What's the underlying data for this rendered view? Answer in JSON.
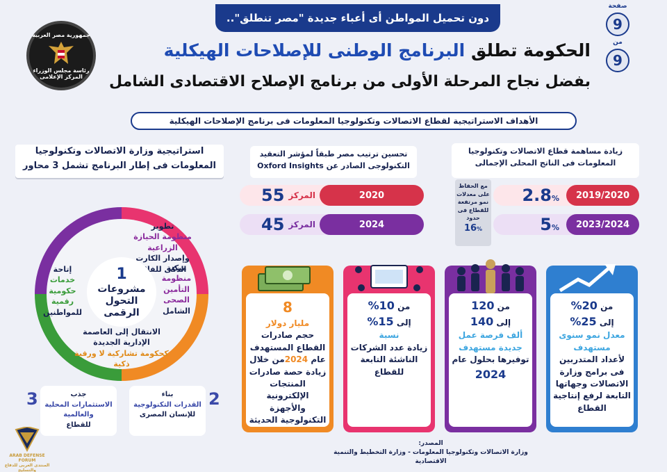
{
  "header": {
    "banner": "دون تحميل المواطن أى أعباء جديدة \"مصر تنطلق\"..",
    "title_pre": "الحكومة تطلق",
    "title_hl": "البرنامج الوطنى للإصلاحات الهيكلية",
    "subtitle": "بفضل نجاح المرحلة الأولى من برنامج الإصلاح الاقتصادى الشامل",
    "page_label": "صفحة",
    "page_num": "9",
    "of_label": "من",
    "of_num": "9"
  },
  "logo": {
    "line1": "جمهورية مصر العربية",
    "line2": "رئاسة مجلس الوزراء",
    "line3": "المركز الإعلامى"
  },
  "section_title": "الأهداف الاستراتيجية لقطاع الاتصالات وتكنولوجيا المعلومات فى برنامج الإصلاحات الهيكلية",
  "goal_gdp": {
    "title": "زيادة مساهمة قطاع الاتصالات وتكنولوجيا المعلومات فى الناتج المحلى الإجمالى",
    "rows": [
      {
        "year": "2019/2020",
        "value": "2.8",
        "unit": "%"
      },
      {
        "year": "2023/2024",
        "value": "5",
        "unit": "%"
      }
    ],
    "note": "مع الحفاظ على معدلات نمو مرتفعة للقطاع فى حدود",
    "note_value": "16",
    "note_unit": "%"
  },
  "goal_rank": {
    "title": "تحسين ترتيب مصر طبقاً لمؤشر التعقيد التكنولوجى الصادر عن",
    "source": "Oxford Insights",
    "rows": [
      {
        "year": "2020",
        "label": "المركز",
        "value": "55"
      },
      {
        "year": "2024",
        "label": "المركز",
        "value": "45"
      }
    ]
  },
  "cards": [
    {
      "l1": "من",
      "v1": "20",
      "l2": "إلى",
      "v2": "25",
      "unit": "%",
      "hl": "معدل نمو سنوى مستهدف",
      "text": "لأعداد المتدربين فى برامج وزارة الاتصالات وجهاتها التابعة لرفع إنتاجية القطاع"
    },
    {
      "l1": "من",
      "v1": "120",
      "l2": "إلى",
      "v2": "140",
      "hl": "ألف فرصة عمل جديدة مستهدف",
      "text": "توفيرها بحلول عام",
      "year": "2024"
    },
    {
      "l1": "من",
      "v1": "10",
      "l2": "إلى",
      "v2": "15",
      "unit": "%",
      "hl": "نسبة",
      "text": "زيادة عدد الشركات الناشئة التابعة للقطاع"
    },
    {
      "big": "8",
      "hl": "مليار دولار",
      "text": "حجم صادرات القطاع المستهدف عام",
      "year": "2024",
      "text2": "من خلال زيادة حصة صادرات المنتجات الإلكترونية والأجهزة التكنولوجية الحديثة"
    }
  ],
  "strategy": {
    "title": "استراتيجية وزارة الاتصالات وتكنولوجيا المعلومات فى إطار البرنامج تشمل 3 محاور",
    "center_num": "1",
    "center_text": "مشروعات التحول الرقمى",
    "seg_top": {
      "a": "تطوير",
      "b": "منظومة الحيازة الزراعية",
      "c": "وإصدار الكارت الذكى للفلاح"
    },
    "seg_right": {
      "a": "ميكنة",
      "b": "منظومة التأمين الصحى",
      "c": "الشامل"
    },
    "seg_left": {
      "a": "إتاحة",
      "b": "خدمات حكومية رقمية",
      "c": "للمواطنين"
    },
    "seg_bottom": {
      "a": "الانتقال إلى العاصمة الإدارية الجديدة",
      "b": "كحكومة تشاركية لا ورقية ذكية"
    },
    "axis2": {
      "num": "2",
      "a": "بناء",
      "b": "القدرات التكنولوجية",
      "c": "للإنسان المصرى"
    },
    "axis3": {
      "num": "3",
      "a": "جذب",
      "b": "الاستثمارات المحلية والعالمية",
      "c": "للقطاع"
    }
  },
  "source": {
    "label": "المصدر:",
    "text": "وزارة الاتصالات وتكنولوجيا المعلومات - وزارة التخطيط والتنمية الاقتصادية"
  },
  "forum": {
    "name": "ARAB DEFENSE FORUM",
    "sub": "المنتدى العربى للدفاع والتسليح"
  },
  "colors": {
    "navy": "#1a3a8c",
    "red": "#d6334a",
    "purple": "#7a2fa0",
    "blue": "#2f7fd0",
    "orange": "#f08a24",
    "pink": "#e8346f"
  }
}
